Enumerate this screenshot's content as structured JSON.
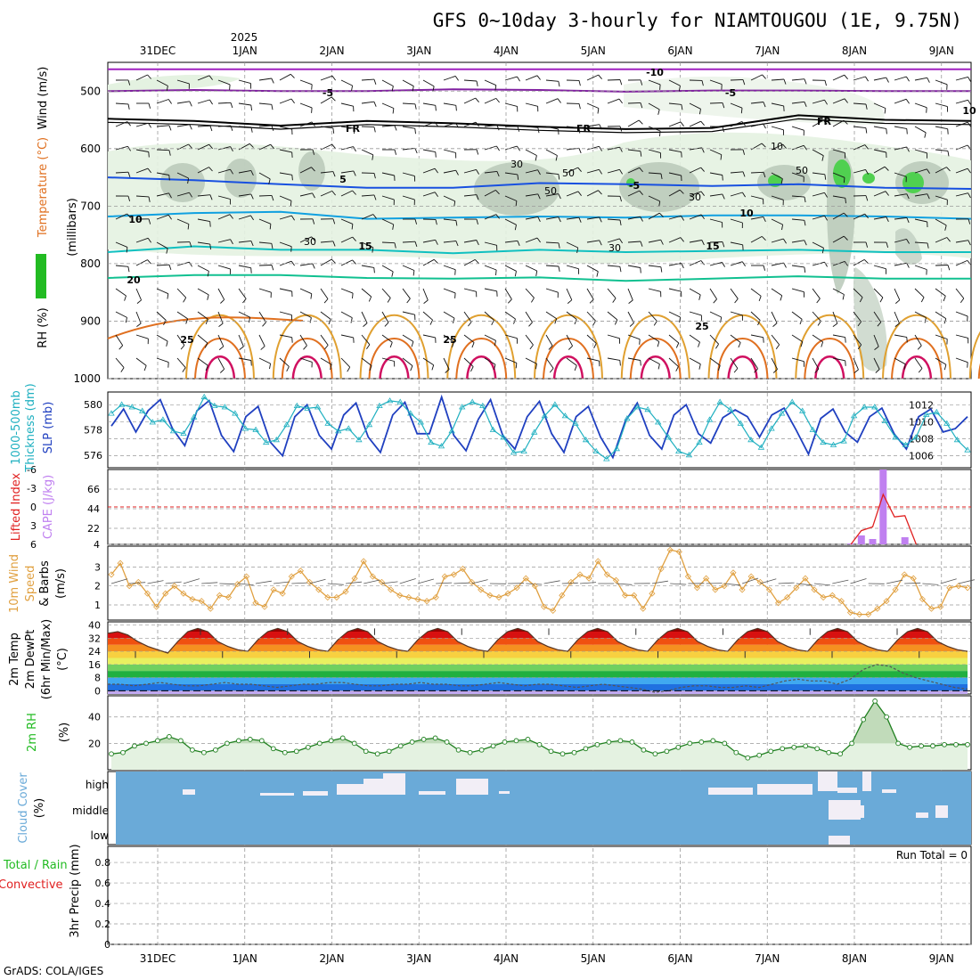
{
  "title": "GFS 0~10day 3-hourly for NIAMTOUGOU (1E, 9.75N)",
  "credit": "GrADS: COLA/IGES",
  "year_label": "2025",
  "date_labels": [
    "31DEC",
    "1JAN",
    "2JAN",
    "3JAN",
    "4JAN",
    "5JAN",
    "6JAN",
    "7JAN",
    "8JAN",
    "9JAN"
  ],
  "colors": {
    "rh_green": "#22bb22",
    "temp_orange": "#e07020",
    "slp_blue": "#2040c0",
    "thickness_cyan": "#20b0c0",
    "cape_purple": "#c080f0",
    "lifted_red": "#e02020",
    "wind_orange": "#e0a040",
    "cloud_blue": "#6aaad8",
    "precip_green": "#22bb22",
    "precip_red": "#e02020"
  },
  "chart_data": [
    {
      "type": "heatmap",
      "panel": "upper-air",
      "ylabel_parts": [
        "RH (%)",
        "Temperature (°C)",
        "Wind (m/s)",
        "(millibars)"
      ],
      "y_ticks": [
        500,
        600,
        700,
        800,
        900,
        1000
      ],
      "ylim": [
        1000,
        450
      ],
      "temperature_contour_labels": [
        "-10",
        "-5",
        "FR",
        "FR",
        "FR",
        "-5",
        "5",
        "-5",
        "10",
        "10",
        "15",
        "15",
        "20",
        "25",
        "25",
        "25",
        "10"
      ],
      "rh_contour_labels": [
        "30",
        "50",
        "30",
        "30",
        "50",
        "30",
        "50",
        "10"
      ],
      "temperature_levels": [
        {
          "label": "-10",
          "color": "#a020c0",
          "pressure": [
            462,
            462,
            462,
            462,
            462,
            462,
            462,
            462,
            462,
            462,
            462
          ]
        },
        {
          "label": "-5",
          "color": "#8020a0",
          "pressure": [
            500,
            498,
            500,
            500,
            497,
            498,
            501,
            499,
            499,
            500,
            500
          ]
        },
        {
          "label": "FR",
          "color": "#000000",
          "pressure": [
            548,
            552,
            560,
            552,
            556,
            562,
            566,
            564,
            542,
            550,
            552
          ]
        },
        {
          "label": "5",
          "color": "#1850e0",
          "pressure": [
            650,
            655,
            662,
            668,
            668,
            660,
            662,
            665,
            662,
            668,
            670
          ]
        },
        {
          "label": "10",
          "color": "#10a0e0",
          "pressure": [
            718,
            712,
            710,
            722,
            720,
            718,
            720,
            716,
            716,
            718,
            722
          ]
        },
        {
          "label": "15",
          "color": "#10c0c0",
          "pressure": [
            780,
            770,
            776,
            776,
            782,
            776,
            780,
            778,
            776,
            780,
            780
          ]
        },
        {
          "label": "20",
          "color": "#10c090",
          "pressure": [
            825,
            820,
            820,
            825,
            826,
            824,
            830,
            826,
            822,
            826,
            826
          ]
        }
      ]
    },
    {
      "type": "line",
      "panel": "slp-thickness",
      "ylabel_parts": [
        "1000-500mb",
        "Thickness (dm)",
        "SLP (mb)"
      ],
      "left_ticks": [
        576,
        578,
        580
      ],
      "right_ticks": [
        1006,
        1008,
        1010,
        1012
      ],
      "series": [
        {
          "name": "SLP (mb)",
          "color": "#2040c0",
          "values": [
            1009.5,
            1011.5,
            1008.8,
            1011.3,
            1012.6,
            1009.2,
            1007.2,
            1011.3,
            1012.5,
            1008.4,
            1006.5,
            1010.6,
            1011.8,
            1007.6,
            1006,
            1010.6,
            1012,
            1008.4,
            1006.8,
            1010.8,
            1012.2,
            1008.2,
            1006.4,
            1010.8,
            1012.3,
            1008.6,
            1008.6,
            1012.9,
            1008.4,
            1006.6,
            1010.3,
            1012.6,
            1008.4,
            1006.8,
            1010.6,
            1012.4,
            1008.6,
            1006.4,
            1010.6,
            1011.8,
            1008.2,
            1005.8,
            1010,
            1012.2,
            1008.4,
            1006.8,
            1010.8,
            1012,
            1008.6,
            1007.5,
            1010.5,
            1011.4,
            1010.6,
            1008.2,
            1010.8,
            1011.6,
            1009,
            1006.2,
            1010.4,
            1011.5,
            1008.8,
            1007.6,
            1010.6,
            1011.6,
            1008.6,
            1006.8,
            1010.6,
            1011.5,
            1008.8,
            1009.2,
            1010.6
          ]
        },
        {
          "name": "1000-500mb Thickness (dm)",
          "color": "#20b0c0",
          "values": [
            579.3,
            580,
            579.8,
            579.5,
            578.6,
            578.8,
            577.9,
            577.7,
            579,
            580.6,
            579.9,
            579.8,
            579.3,
            578.1,
            578,
            577,
            577.2,
            578.4,
            579.9,
            579.7,
            579.8,
            578.5,
            577.9,
            578.1,
            577.2,
            578.4,
            579.9,
            580.3,
            580.2,
            579.3,
            578.6,
            577,
            576.7,
            577.9,
            579.8,
            580.2,
            579.9,
            578,
            577.4,
            576.2,
            576.3,
            577.8,
            579.1,
            580,
            579.1,
            578.5,
            577.2,
            576.3,
            575.7,
            576.5,
            578.9,
            579.8,
            579.6,
            578.6,
            577.4,
            576.3,
            576,
            577,
            578.8,
            580.2,
            579.6,
            578.5,
            577.2,
            576.6,
            578.1,
            579.3,
            580.2,
            579.5,
            578,
            577,
            576.8,
            577.1,
            579.1,
            579.8,
            579.8,
            578.7,
            577.4,
            576.8,
            577.4,
            579.2,
            579.4,
            578.5,
            577.2,
            576.4
          ]
        }
      ]
    },
    {
      "type": "bar",
      "panel": "cape-lifted",
      "ylabel_parts": [
        "Lifted Index",
        "CAPE (J/kg)"
      ],
      "left_ticks": [
        "-6",
        "-3",
        "0",
        "3",
        "6"
      ],
      "right_ticks": [
        4,
        22,
        44,
        66
      ],
      "cape_values": [
        {
          "x": 7.96,
          "v": 5
        },
        {
          "x": 8.08,
          "v": 14
        },
        {
          "x": 8.21,
          "v": 10
        },
        {
          "x": 8.33,
          "v": 88
        },
        {
          "x": 8.58,
          "v": 12
        }
      ],
      "lifted_index": [
        {
          "x": 7.96,
          "v": 6
        },
        {
          "x": 8.08,
          "v": 3.8
        },
        {
          "x": 8.21,
          "v": 3.2
        },
        {
          "x": 8.33,
          "v": -2
        },
        {
          "x": 8.46,
          "v": 1.6
        },
        {
          "x": 8.58,
          "v": 1.4
        },
        {
          "x": 8.71,
          "v": 6
        }
      ]
    },
    {
      "type": "line",
      "panel": "wind10m",
      "ylabel_parts": [
        "10m Wind",
        "Speed",
        "& Barbs",
        "(m/s)"
      ],
      "y_ticks": [
        1,
        2,
        3
      ],
      "series": [
        {
          "name": "10m Wind Speed",
          "color": "#e0a040",
          "values": [
            2.6,
            3.2,
            2,
            2.2,
            1.6,
            0.9,
            1.6,
            2,
            1.6,
            1.3,
            1.2,
            0.8,
            1.5,
            1.4,
            2.1,
            2.5,
            1.1,
            0.9,
            1.8,
            1.6,
            2.5,
            2.8,
            2.2,
            1.8,
            1.4,
            1.4,
            1.7,
            2.4,
            3.3,
            2.5,
            2.2,
            1.8,
            1.5,
            1.4,
            1.3,
            1.2,
            1.4,
            2.5,
            2.6,
            2.9,
            2.2,
            1.8,
            1.5,
            1.4,
            1.6,
            1.9,
            2.4,
            2,
            0.9,
            0.7,
            1.5,
            2.2,
            2.6,
            2.4,
            3.3,
            2.6,
            2.3,
            1.5,
            1.5,
            0.8,
            1.6,
            2.9,
            3.9,
            3.8,
            2.5,
            1.9,
            2.4,
            1.8,
            2,
            2.7,
            1.8,
            2.5,
            2.2,
            1.8,
            1.1,
            1.4,
            1.9,
            2.4,
            1.8,
            1.4,
            1.5,
            1.2,
            0.6,
            0.5,
            0.5,
            0.8,
            1.2,
            1.8,
            2.6,
            2.4,
            1.3,
            0.8,
            0.9,
            1.9,
            2,
            1.9
          ]
        }
      ]
    },
    {
      "type": "area",
      "panel": "temp2m",
      "ylabel_parts": [
        "2m Temp",
        "2m DewPt",
        "(6hr Min/Max)",
        "(°C)"
      ],
      "y_ticks": [
        0,
        8,
        16,
        24,
        32,
        40
      ],
      "series": [
        {
          "name": "2m Temp",
          "values": [
            35,
            36,
            34,
            30,
            27,
            25,
            23,
            30,
            36,
            38,
            36,
            30,
            27,
            25,
            24,
            31,
            36,
            38,
            36,
            30,
            27,
            25,
            24,
            31,
            36,
            38,
            36,
            30,
            27,
            25,
            24,
            31,
            36,
            38,
            36,
            30,
            27,
            25,
            24,
            31,
            36,
            38,
            36,
            30,
            27,
            25,
            24,
            31,
            36,
            38,
            36,
            30,
            27,
            25,
            24,
            31,
            36,
            38,
            36,
            30,
            27,
            25,
            24,
            31,
            36,
            38,
            36,
            30,
            27,
            25,
            24,
            31,
            36,
            38,
            36,
            30,
            27,
            25,
            24,
            31,
            36,
            38,
            36,
            30,
            27,
            25,
            24
          ]
        },
        {
          "name": "2m DewPt",
          "values": [
            4,
            4,
            3,
            4,
            5,
            4,
            3,
            3,
            4,
            5,
            4,
            4,
            3,
            2,
            3,
            4,
            4,
            5,
            5,
            4,
            3,
            3,
            4,
            4,
            5,
            4,
            4,
            3,
            3,
            4,
            5,
            4,
            3,
            4,
            4,
            3,
            2,
            3,
            4,
            3,
            2,
            1,
            -1,
            0,
            2,
            3,
            3,
            2,
            2,
            3,
            2,
            4,
            6,
            7,
            6,
            6,
            4,
            7,
            13,
            16,
            15,
            11,
            8,
            6,
            4,
            2,
            1
          ]
        }
      ]
    },
    {
      "type": "area",
      "panel": "rh2m",
      "ylabel_parts": [
        "2m RH",
        "(%)"
      ],
      "y_ticks": [
        20,
        40
      ],
      "series": [
        {
          "name": "2m RH",
          "values": [
            12,
            13,
            18,
            20,
            22,
            25,
            22,
            15,
            13,
            15,
            20,
            22,
            23,
            22,
            16,
            13,
            14,
            17,
            20,
            22,
            24,
            20,
            14,
            12,
            14,
            18,
            21,
            23,
            24,
            21,
            15,
            13,
            15,
            18,
            21,
            22,
            23,
            19,
            14,
            12,
            13,
            16,
            19,
            21,
            22,
            21,
            15,
            12,
            14,
            17,
            20,
            21,
            22,
            20,
            13,
            9,
            11,
            14,
            16,
            17,
            18,
            16,
            13,
            12,
            20,
            38,
            52,
            40,
            20,
            17,
            18,
            18,
            19,
            19,
            19
          ]
        }
      ]
    },
    {
      "type": "heatmap",
      "panel": "cloud",
      "ylabel_parts": [
        "Cloud Cover",
        "(%)"
      ],
      "levels": [
        "high",
        "middle",
        "low"
      ]
    },
    {
      "type": "bar",
      "panel": "precip",
      "ylabel_parts": [
        "Total / Rain",
        "Convective",
        "3hr Precip (mm)"
      ],
      "y_ticks": [
        "0",
        "0.2",
        "0.4",
        "0.6",
        "0.8"
      ],
      "run_total": "Run Total = 0",
      "values": []
    }
  ]
}
